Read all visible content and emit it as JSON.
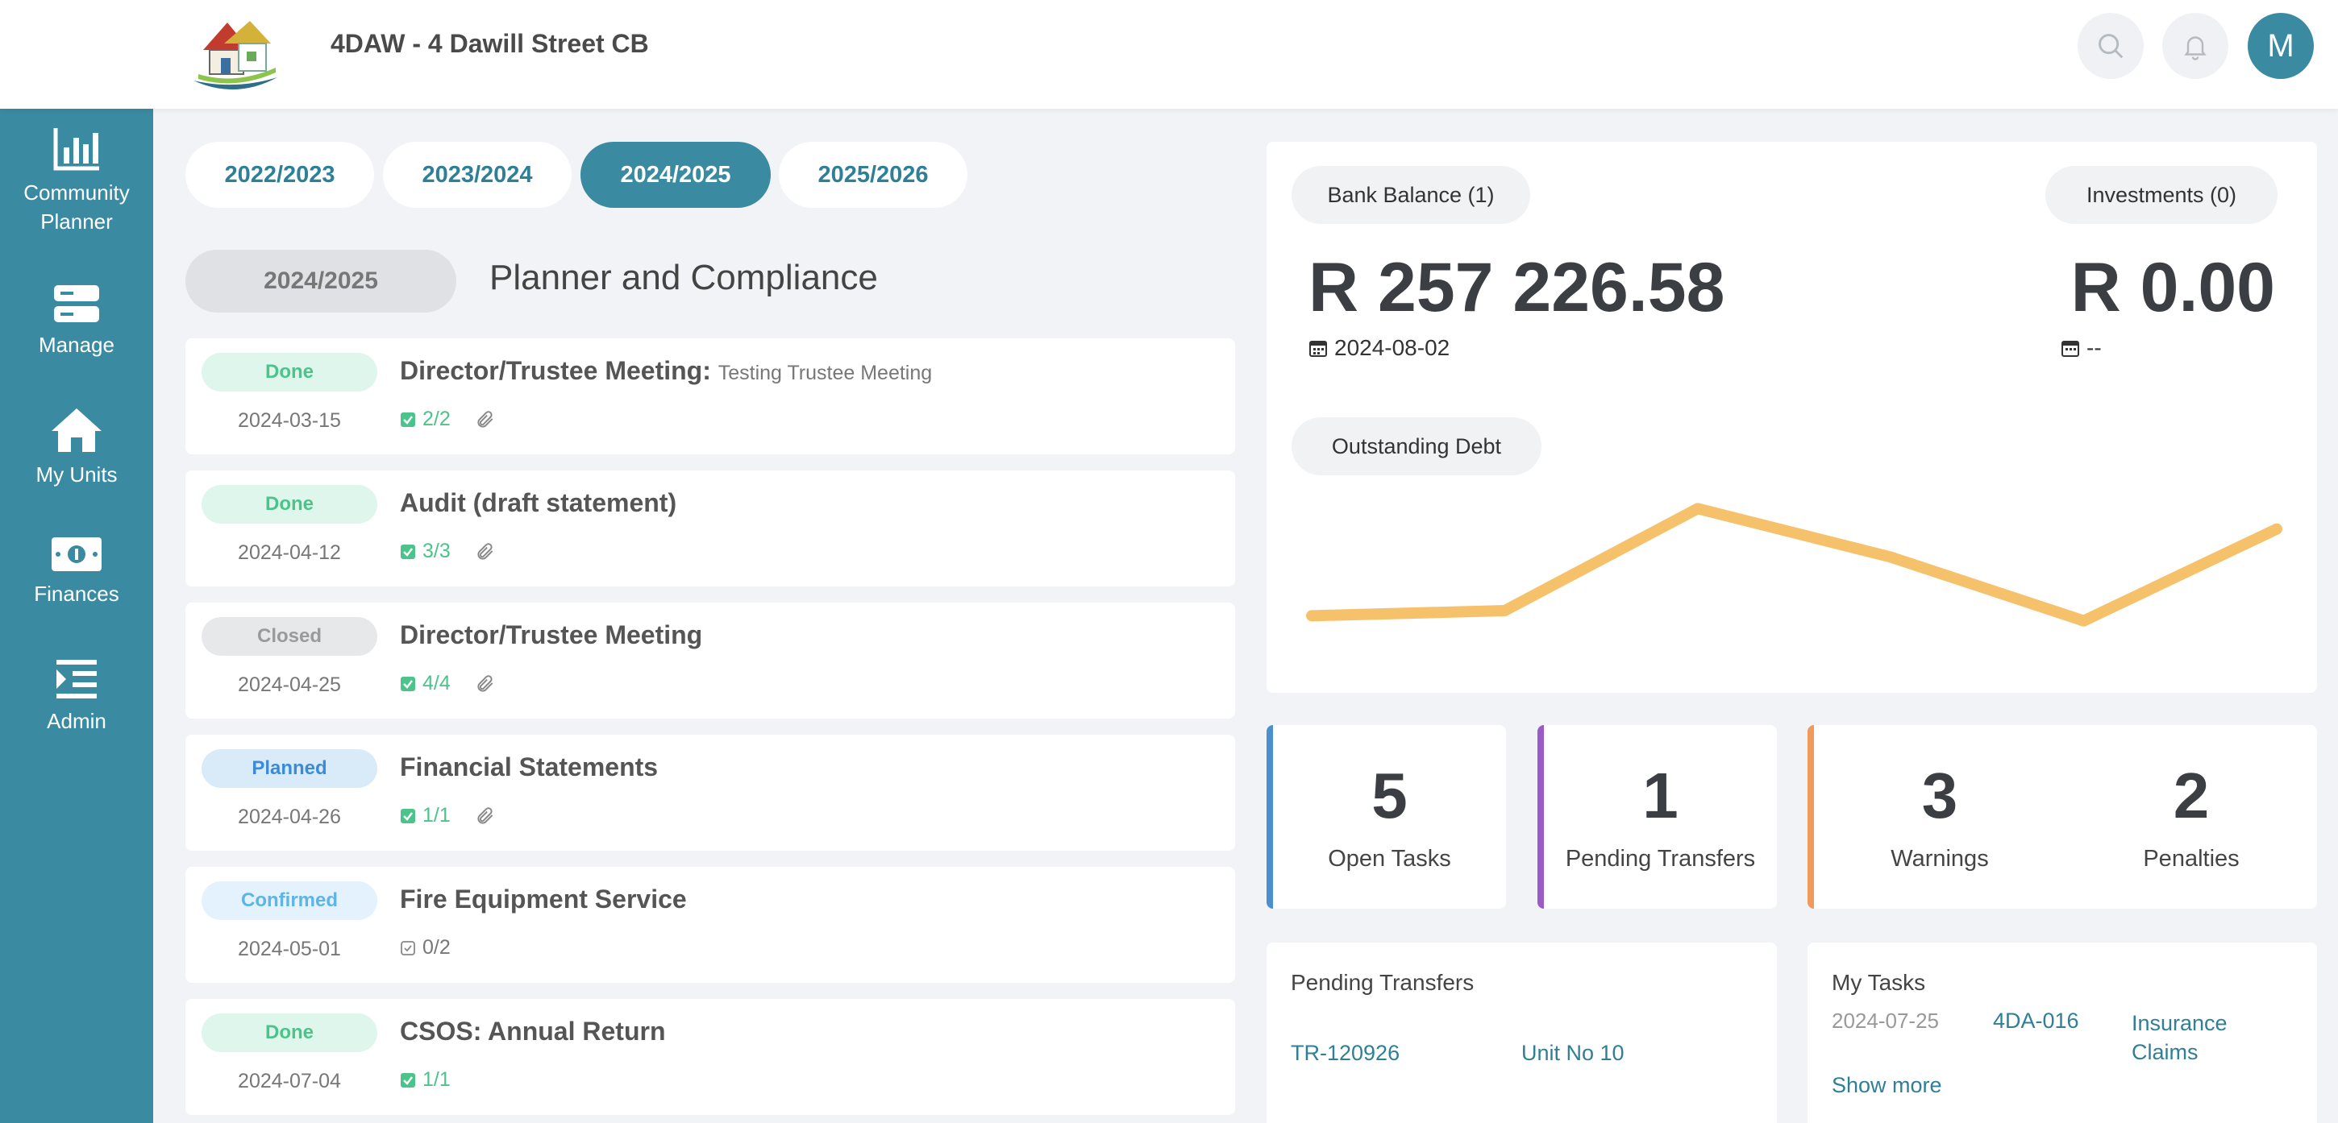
{
  "header": {
    "title": "4DAW - 4 Dawill Street CB",
    "avatar_initial": "M"
  },
  "sidebar": {
    "items": [
      {
        "label": "Community Planner",
        "icon": "bar-chart-icon"
      },
      {
        "label": "Manage",
        "icon": "server-icon"
      },
      {
        "label": "My Units",
        "icon": "home-icon"
      },
      {
        "label": "Finances",
        "icon": "money-icon"
      },
      {
        "label": "Admin",
        "icon": "list-indent-icon"
      }
    ]
  },
  "year_tabs": [
    {
      "label": "2022/2023",
      "active": false
    },
    {
      "label": "2023/2024",
      "active": false
    },
    {
      "label": "2024/2025",
      "active": true
    },
    {
      "label": "2025/2026",
      "active": false
    }
  ],
  "planner": {
    "year": "2024/2025",
    "title": "Planner and Compliance",
    "events": [
      {
        "status": "Done",
        "date": "2024-03-15",
        "title": "Director/Trustee Meeting:",
        "subtitle": "Testing Trustee Meeting",
        "count": "2/2",
        "has_attachment": true
      },
      {
        "status": "Done",
        "date": "2024-04-12",
        "title": "Audit (draft statement)",
        "subtitle": "",
        "count": "3/3",
        "has_attachment": true
      },
      {
        "status": "Closed",
        "date": "2024-04-25",
        "title": "Director/Trustee Meeting",
        "subtitle": "",
        "count": "4/4",
        "has_attachment": true
      },
      {
        "status": "Planned",
        "date": "2024-04-26",
        "title": "Financial Statements",
        "subtitle": "",
        "count": "1/1",
        "has_attachment": true
      },
      {
        "status": "Confirmed",
        "date": "2024-05-01",
        "title": "Fire Equipment Service",
        "subtitle": "",
        "count": "0/2",
        "has_attachment": false
      },
      {
        "status": "Done",
        "date": "2024-07-04",
        "title": "CSOS: Annual Return",
        "subtitle": "",
        "count": "1/1",
        "has_attachment": false
      }
    ]
  },
  "finance": {
    "bank_balance_label": "Bank Balance (1)",
    "bank_balance_amount": "R 257 226.58",
    "bank_balance_date": "2024-08-02",
    "investments_label": "Investments (0)",
    "investments_amount": "R 0.00",
    "investments_date": "--",
    "outstanding_debt_label": "Outstanding Debt",
    "debt_line_color": "#f5c26b"
  },
  "chart_data": {
    "type": "line",
    "series": [
      {
        "values": [
          10,
          12,
          52,
          33,
          8,
          44
        ]
      }
    ],
    "ylim": [
      0,
      60
    ]
  },
  "stats": [
    {
      "value": "5",
      "label": "Open Tasks",
      "accent": "#4a90d0"
    },
    {
      "value": "1",
      "label": "Pending Transfers",
      "accent": "#9a5bc9"
    },
    {
      "value": "3",
      "label": "Warnings",
      "accent": "#f09a5e"
    },
    {
      "value": "2",
      "label": "Penalties",
      "accent": "#f09a5e"
    }
  ],
  "pending_transfers": {
    "title": "Pending Transfers",
    "rows": [
      {
        "ref": "TR-120926",
        "unit": "Unit No 10"
      }
    ]
  },
  "my_tasks": {
    "title": "My Tasks",
    "rows": [
      {
        "date": "2024-07-25",
        "ref": "4DA-016",
        "category": "Insurance Claims"
      }
    ],
    "show_more": "Show more"
  }
}
